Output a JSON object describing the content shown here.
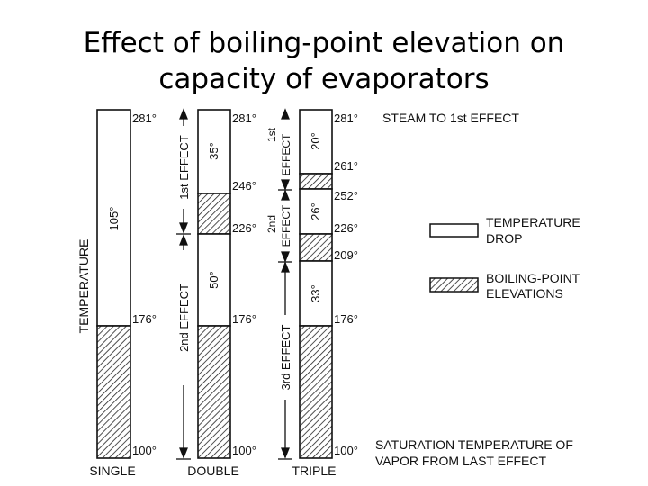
{
  "title_line1": "Effect of boiling-point elevation on",
  "title_line2": "capacity of evaporators",
  "axis_label": "TEMPERATURE",
  "columns": {
    "single": {
      "label": "SINGLE",
      "temps": [
        "281°",
        "176°",
        "100°"
      ],
      "drops": [
        "105°"
      ]
    },
    "double": {
      "label": "DOUBLE",
      "temps": [
        "281°",
        "246°",
        "226°",
        "176°",
        "100°"
      ],
      "drops": [
        "35°",
        "50°"
      ],
      "effects": [
        "1st EFFECT",
        "2nd EFFECT"
      ]
    },
    "triple": {
      "label": "TRIPLE",
      "temps": [
        "281°",
        "261°",
        "252°",
        "226°",
        "209°",
        "176°",
        "100°"
      ],
      "drops": [
        "20°",
        "26°",
        "33°"
      ],
      "effects": [
        "1st",
        "EFFECT",
        "2nd",
        "EFFECT",
        "3rd EFFECT"
      ]
    }
  },
  "annotations": {
    "steam": "STEAM TO 1st EFFECT",
    "saturation_line1": "SATURATION TEMPERATURE OF",
    "saturation_line2": "VAPOR FROM LAST EFFECT"
  },
  "legend": {
    "temp_drop_line1": "TEMPERATURE",
    "temp_drop_line2": "DROP",
    "bpe_line1": "BOILING-POINT",
    "bpe_line2": "ELEVATIONS"
  }
}
